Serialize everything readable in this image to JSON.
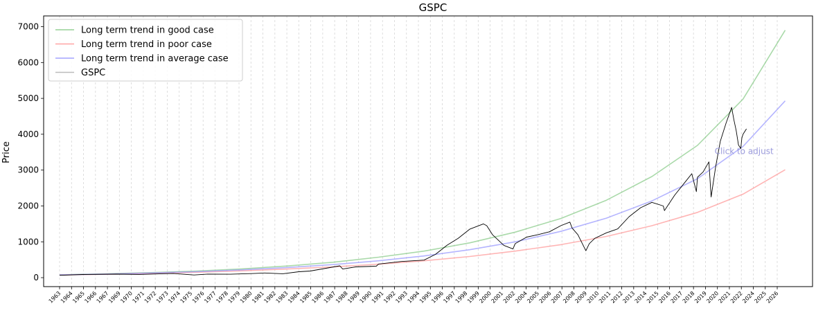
{
  "chart_data": {
    "type": "line",
    "title": "GSPC",
    "xlabel": "",
    "ylabel": "Price",
    "x_ticks": [
      "1963",
      "1964",
      "1965",
      "1966",
      "1967",
      "1969",
      "1970",
      "1971",
      "1972",
      "1973",
      "1974",
      "1975",
      "1976",
      "1977",
      "1978",
      "1979",
      "1980",
      "1981",
      "1982",
      "1983",
      "1984",
      "1985",
      "1986",
      "1987",
      "1988",
      "1989",
      "1990",
      "1991",
      "1992",
      "1993",
      "1994",
      "1995",
      "1996",
      "1997",
      "1998",
      "1999",
      "2000",
      "2001",
      "2002",
      "2004",
      "2005",
      "2006",
      "2007",
      "2008",
      "2009",
      "2010",
      "2011",
      "2012",
      "2013",
      "2014",
      "2015",
      "2016",
      "2017",
      "2018",
      "2019",
      "2020",
      "2021",
      "2022",
      "2024",
      "2025",
      "2026"
    ],
    "y_ticks": [
      0,
      1000,
      2000,
      3000,
      4000,
      5000,
      6000,
      7000
    ],
    "ylim": [
      -250,
      7300
    ],
    "xlim": [
      1961.6,
      2029.1
    ],
    "grid": "vertical dashed",
    "legend_position": "top-left",
    "annotation": {
      "text": "Click to adjust",
      "x": 2020.5,
      "y": 3450,
      "color": "#9b9bdc"
    },
    "series": [
      {
        "name": "Long term trend in good case",
        "color": "#7bc47b",
        "x": [
          1963,
          1967,
          1971,
          1975,
          1979,
          1983,
          1987,
          1991,
          1995,
          1999,
          2003,
          2007,
          2011,
          2015,
          2019,
          2023,
          2026.7
        ],
        "values": [
          80,
          105,
          140,
          185,
          245,
          325,
          430,
          570,
          740,
          970,
          1270,
          1650,
          2160,
          2820,
          3690,
          4980,
          6900
        ]
      },
      {
        "name": "Long term trend in poor case",
        "color": "#ff8c8c",
        "x": [
          1963,
          1967,
          1971,
          1975,
          1979,
          1983,
          1987,
          1991,
          1995,
          1999,
          2003,
          2007,
          2011,
          2015,
          2019,
          2023,
          2026.7
        ],
        "values": [
          75,
          95,
          120,
          150,
          190,
          240,
          300,
          375,
          470,
          590,
          740,
          920,
          1150,
          1450,
          1820,
          2330,
          3010
        ]
      },
      {
        "name": "Long term trend in average case",
        "color": "#8c8cff",
        "x": [
          1963,
          1967,
          1971,
          1975,
          1979,
          1983,
          1987,
          1991,
          1995,
          1999,
          2003,
          2007,
          2011,
          2015,
          2019,
          2023,
          2026.7
        ],
        "values": [
          78,
          100,
          130,
          168,
          218,
          282,
          365,
          470,
          605,
          780,
          1000,
          1290,
          1660,
          2140,
          2760,
          3660,
          4930
        ]
      },
      {
        "name": "GSPC",
        "color": "#000000",
        "x": [
          1963,
          1965,
          1968,
          1970,
          1972,
          1973,
          1974.8,
          1976,
          1978,
          1980,
          1981,
          1982.6,
          1984,
          1985,
          1987.6,
          1987.85,
          1989,
          1990.8,
          1991,
          1993,
          1995,
          1996,
          1997,
          1998,
          1999,
          2000.2,
          2000.5,
          2001,
          2002,
          2002.8,
          2003,
          2004,
          2005,
          2006,
          2007,
          2007.8,
          2008,
          2008.5,
          2009.2,
          2009.5,
          2010,
          2011,
          2012,
          2013,
          2014,
          2015,
          2016,
          2016.1,
          2017,
          2018,
          2018.5,
          2018.9,
          2019,
          2019.5,
          2020,
          2020.2,
          2020.6,
          2021,
          2021.5,
          2022,
          2022.2,
          2022.4,
          2022.6,
          2022.8,
          2022.9,
          2023,
          2023.3
        ],
        "values": [
          65,
          88,
          98,
          90,
          110,
          115,
          75,
          100,
          95,
          115,
          130,
          110,
          165,
          185,
          330,
          240,
          300,
          320,
          380,
          450,
          490,
          650,
          900,
          1100,
          1350,
          1500,
          1450,
          1200,
          900,
          800,
          950,
          1130,
          1200,
          1280,
          1450,
          1550,
          1380,
          1200,
          750,
          950,
          1100,
          1250,
          1360,
          1700,
          1950,
          2100,
          2000,
          1870,
          2300,
          2700,
          2900,
          2400,
          2800,
          2950,
          3230,
          2250,
          3100,
          3800,
          4300,
          4750,
          4400,
          4100,
          3700,
          3600,
          3900,
          4000,
          4150
        ]
      }
    ]
  }
}
